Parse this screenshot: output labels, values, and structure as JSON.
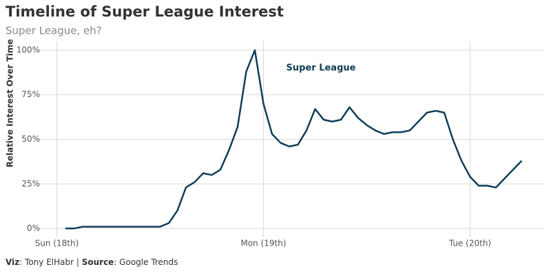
{
  "chart_data": {
    "type": "line",
    "title": "Timeline of Super League Interest",
    "subtitle": "Super League, eh?",
    "y_label": "Relative Interest Over Time",
    "annotation": "Super League",
    "caption": {
      "viz_label": "Viz",
      "viz": ": Tony ElHabr | ",
      "source_label": "Source",
      "source": ": Google Trends"
    },
    "x": [
      1,
      2,
      3,
      4,
      5,
      6,
      7,
      8,
      9,
      10,
      11,
      12,
      13,
      14,
      15,
      16,
      17,
      18,
      19,
      20,
      21,
      22,
      23,
      24,
      25,
      26,
      27,
      28,
      29,
      30,
      31,
      32,
      33,
      34,
      35,
      36,
      37,
      38,
      39,
      40,
      41,
      42,
      43,
      44,
      45,
      46,
      47,
      48,
      49,
      50,
      51,
      52,
      53,
      54
    ],
    "series": [
      {
        "name": "Super League",
        "color": "#0f3d57",
        "values": [
          0,
          0,
          1,
          1,
          1,
          1,
          1,
          1,
          1,
          1,
          1,
          1,
          3,
          10,
          23,
          26,
          31,
          30,
          33,
          44,
          57,
          88,
          100,
          70,
          53,
          48,
          46,
          47,
          55,
          67,
          61,
          60,
          61,
          68,
          62,
          58,
          55,
          53,
          54,
          54,
          55,
          60,
          65,
          66,
          65,
          50,
          38,
          29,
          24,
          24,
          23,
          28,
          33,
          38
        ]
      }
    ],
    "xlim": [
      -2.2,
      56.6
    ],
    "xticks": [
      {
        "value": 0,
        "label": "Sun (18th)"
      },
      {
        "value": 24,
        "label": "Mon (19th)"
      },
      {
        "value": 48,
        "label": "Tue (20th)"
      }
    ],
    "ylim": [
      -5,
      105
    ],
    "yticks": [
      {
        "value": 0,
        "label": "0%"
      },
      {
        "value": 25,
        "label": "25%"
      },
      {
        "value": 50,
        "label": "50%"
      },
      {
        "value": 75,
        "label": "75%"
      },
      {
        "value": 100,
        "label": "100%"
      }
    ],
    "grid": true
  }
}
